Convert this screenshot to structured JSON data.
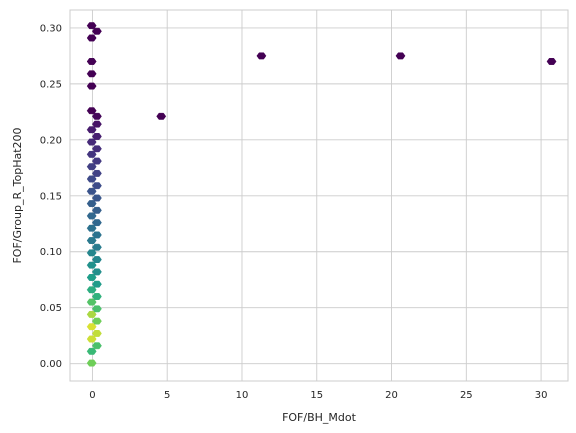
{
  "chart_data": {
    "type": "hexbin",
    "xlabel": "FOF/BH_Mdot",
    "ylabel": "FOF/Group_R_TopHat200",
    "xlim": [
      -1.5,
      31.8
    ],
    "ylim": [
      -0.0155,
      0.316
    ],
    "x_ticks": [
      {
        "value": 0,
        "label": "0"
      },
      {
        "value": 5,
        "label": "5"
      },
      {
        "value": 10,
        "label": "10"
      },
      {
        "value": 15,
        "label": "15"
      },
      {
        "value": 20,
        "label": "20"
      },
      {
        "value": 25,
        "label": "25"
      },
      {
        "value": 30,
        "label": "30"
      }
    ],
    "y_ticks": [
      {
        "value": 0.0,
        "label": "0.00"
      },
      {
        "value": 0.05,
        "label": "0.05"
      },
      {
        "value": 0.1,
        "label": "0.10"
      },
      {
        "value": 0.15,
        "label": "0.15"
      },
      {
        "value": 0.2,
        "label": "0.20"
      },
      {
        "value": 0.25,
        "label": "0.25"
      },
      {
        "value": 0.3,
        "label": "0.30"
      }
    ],
    "grid": true,
    "colormap": "viridis",
    "bins": [
      {
        "x": -0.05,
        "y": 0.0005,
        "count": 0.88
      },
      {
        "x": -0.05,
        "y": 0.011,
        "count": 0.76
      },
      {
        "x": 0.3,
        "y": 0.016,
        "count": 0.8
      },
      {
        "x": -0.05,
        "y": 0.022,
        "count": 0.96
      },
      {
        "x": 0.3,
        "y": 0.027,
        "count": 0.95
      },
      {
        "x": -0.05,
        "y": 0.033,
        "count": 0.97
      },
      {
        "x": 0.3,
        "y": 0.038,
        "count": 0.88
      },
      {
        "x": -0.05,
        "y": 0.044,
        "count": 0.93
      },
      {
        "x": 0.3,
        "y": 0.049,
        "count": 0.8
      },
      {
        "x": -0.05,
        "y": 0.055,
        "count": 0.82
      },
      {
        "x": 0.3,
        "y": 0.06,
        "count": 0.72
      },
      {
        "x": -0.05,
        "y": 0.066,
        "count": 0.7
      },
      {
        "x": 0.3,
        "y": 0.071,
        "count": 0.62
      },
      {
        "x": -0.05,
        "y": 0.077,
        "count": 0.63
      },
      {
        "x": 0.3,
        "y": 0.082,
        "count": 0.56
      },
      {
        "x": -0.05,
        "y": 0.088,
        "count": 0.57
      },
      {
        "x": 0.3,
        "y": 0.093,
        "count": 0.52
      },
      {
        "x": -0.05,
        "y": 0.099,
        "count": 0.52
      },
      {
        "x": 0.3,
        "y": 0.104,
        "count": 0.47
      },
      {
        "x": -0.05,
        "y": 0.11,
        "count": 0.46
      },
      {
        "x": 0.3,
        "y": 0.115,
        "count": 0.43
      },
      {
        "x": -0.05,
        "y": 0.121,
        "count": 0.42
      },
      {
        "x": 0.3,
        "y": 0.126,
        "count": 0.38
      },
      {
        "x": -0.05,
        "y": 0.132,
        "count": 0.38
      },
      {
        "x": 0.3,
        "y": 0.137,
        "count": 0.34
      },
      {
        "x": -0.05,
        "y": 0.143,
        "count": 0.34
      },
      {
        "x": 0.3,
        "y": 0.148,
        "count": 0.3
      },
      {
        "x": -0.05,
        "y": 0.154,
        "count": 0.29
      },
      {
        "x": 0.3,
        "y": 0.159,
        "count": 0.26
      },
      {
        "x": -0.05,
        "y": 0.165,
        "count": 0.25
      },
      {
        "x": 0.3,
        "y": 0.17,
        "count": 0.22
      },
      {
        "x": -0.05,
        "y": 0.176,
        "count": 0.21
      },
      {
        "x": 0.3,
        "y": 0.181,
        "count": 0.19
      },
      {
        "x": -0.05,
        "y": 0.187,
        "count": 0.18
      },
      {
        "x": 0.3,
        "y": 0.192,
        "count": 0.15
      },
      {
        "x": -0.05,
        "y": 0.198,
        "count": 0.14
      },
      {
        "x": 0.3,
        "y": 0.203,
        "count": 0.1
      },
      {
        "x": -0.05,
        "y": 0.209,
        "count": 0.09
      },
      {
        "x": 0.3,
        "y": 0.214,
        "count": 0.06
      },
      {
        "x": 0.3,
        "y": 0.221,
        "count": 0.02
      },
      {
        "x": -0.05,
        "y": 0.226,
        "count": 0.0
      },
      {
        "x": 4.6,
        "y": 0.221,
        "count": 0.0
      },
      {
        "x": -0.05,
        "y": 0.248,
        "count": 0.0
      },
      {
        "x": -0.05,
        "y": 0.259,
        "count": 0.0
      },
      {
        "x": -0.05,
        "y": 0.27,
        "count": 0.0
      },
      {
        "x": 11.3,
        "y": 0.275,
        "count": 0.0
      },
      {
        "x": 20.6,
        "y": 0.275,
        "count": 0.0
      },
      {
        "x": 30.7,
        "y": 0.27,
        "count": 0.0
      },
      {
        "x": -0.05,
        "y": 0.291,
        "count": 0.0
      },
      {
        "x": 0.3,
        "y": 0.297,
        "count": 0.0
      },
      {
        "x": -0.05,
        "y": 0.302,
        "count": 0.0
      }
    ]
  }
}
